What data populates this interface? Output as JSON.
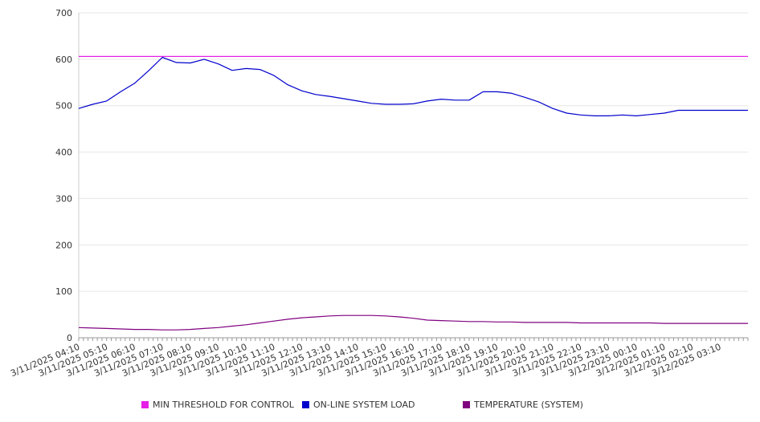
{
  "chart_data": {
    "type": "line",
    "title": "",
    "xlabel": "",
    "ylabel": "",
    "ylim": [
      0,
      700
    ],
    "yticks": [
      0,
      100,
      200,
      300,
      400,
      500,
      600,
      700
    ],
    "grid": "horizontal",
    "legend_placement": "bottom",
    "x_tick_labels": [
      "3/11/2025 04:10",
      "3/11/2025 05:10",
      "3/11/2025 06:10",
      "3/11/2025 07:10",
      "3/11/2025 08:10",
      "3/11/2025 09:10",
      "3/11/2025 10:10",
      "3/11/2025 11:10",
      "3/11/2025 12:10",
      "3/11/2025 13:10",
      "3/11/2025 14:10",
      "3/11/2025 15:10",
      "3/11/2025 16:10",
      "3/11/2025 17:10",
      "3/11/2025 18:10",
      "3/11/2025 19:10",
      "3/11/2025 20:10",
      "3/11/2025 21:10",
      "3/11/2025 22:10",
      "3/11/2025 23:10",
      "3/12/2025 00:10",
      "3/12/2025 01:10",
      "3/12/2025 02:10",
      "3/12/2025 03:10"
    ],
    "x_hours": [
      0,
      0.5,
      1,
      1.5,
      2,
      2.5,
      3,
      3.5,
      4,
      4.5,
      5,
      5.5,
      6,
      6.5,
      7,
      7.5,
      8,
      8.5,
      9,
      9.5,
      10,
      10.5,
      11,
      11.5,
      12,
      12.5,
      13,
      13.5,
      14,
      14.5,
      15,
      15.5,
      16,
      16.5,
      17,
      17.5,
      18,
      18.5,
      19,
      19.5,
      20,
      20.5,
      21,
      21.5,
      22,
      22.5,
      23,
      23.5,
      24
    ],
    "series": [
      {
        "name": "MIN THRESHOLD FOR CONTROL",
        "color": "#e61ee6",
        "values": [
          606,
          606,
          606,
          606,
          606,
          606,
          606,
          606,
          606,
          606,
          606,
          606,
          606,
          606,
          606,
          606,
          606,
          606,
          606,
          606,
          606,
          606,
          606,
          606,
          606,
          606,
          606,
          606,
          606,
          606,
          606,
          606,
          606,
          606,
          606,
          606,
          606,
          606,
          606,
          606,
          606,
          606,
          606,
          606,
          606,
          606,
          606,
          606,
          606
        ]
      },
      {
        "name": "ON-LINE SYSTEM LOAD",
        "color": "#0000cc",
        "values": [
          494,
          503,
          510,
          530,
          548,
          575,
          604,
          593,
          592,
          600,
          590,
          576,
          580,
          578,
          565,
          545,
          532,
          524,
          520,
          515,
          510,
          505,
          503,
          503,
          504,
          510,
          514,
          512,
          512,
          530,
          530,
          527,
          518,
          508,
          494,
          484,
          480,
          478,
          478,
          480,
          478,
          481,
          484,
          490,
          490,
          490,
          490,
          490,
          490
        ]
      },
      {
        "name": "TEMPERATURE (SYSTEM)",
        "color": "#800080",
        "values": [
          22,
          21,
          20,
          19,
          18,
          18,
          17,
          17,
          18,
          20,
          22,
          25,
          28,
          32,
          36,
          40,
          43,
          45,
          47,
          48,
          48,
          48,
          47,
          45,
          42,
          38,
          37,
          36,
          35,
          35,
          34,
          34,
          33,
          33,
          33,
          33,
          32,
          32,
          32,
          32,
          32,
          32,
          31,
          31,
          31,
          31,
          31,
          31,
          31
        ]
      }
    ]
  }
}
